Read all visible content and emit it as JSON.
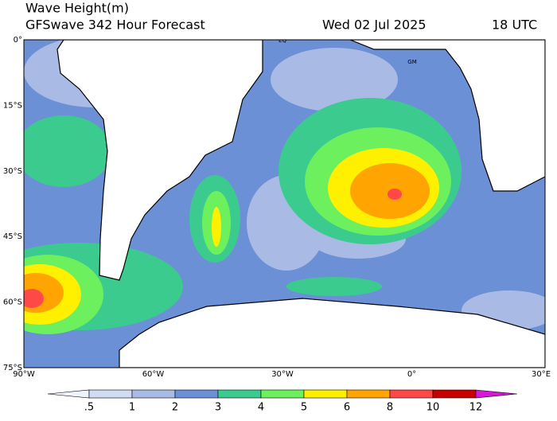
{
  "header": {
    "title": "Wave Height(m)",
    "model": "GFSwave 342 Hour Forecast",
    "date": "Wed 02 Jul 2025",
    "time": "18 UTC"
  },
  "map": {
    "markers": [
      "EQ",
      "GM"
    ],
    "lat_labels": [
      "0°",
      "15°S",
      "30°S",
      "45°S",
      "60°S",
      "75°S"
    ],
    "lon_labels": [
      "90°W",
      "60°W",
      "30°W",
      "0°",
      "30°E"
    ]
  },
  "colorbar": {
    "labels": [
      ".5",
      "1",
      "2",
      "3",
      "4",
      "5",
      "6",
      "8",
      "10",
      "12"
    ],
    "colors": [
      "#eef3fc",
      "#cfdcf2",
      "#a9bbe4",
      "#6b90d6",
      "#3ccb8f",
      "#6cf05e",
      "#fff000",
      "#ffa400",
      "#ff4848",
      "#c80000",
      "#d818d8"
    ]
  }
}
